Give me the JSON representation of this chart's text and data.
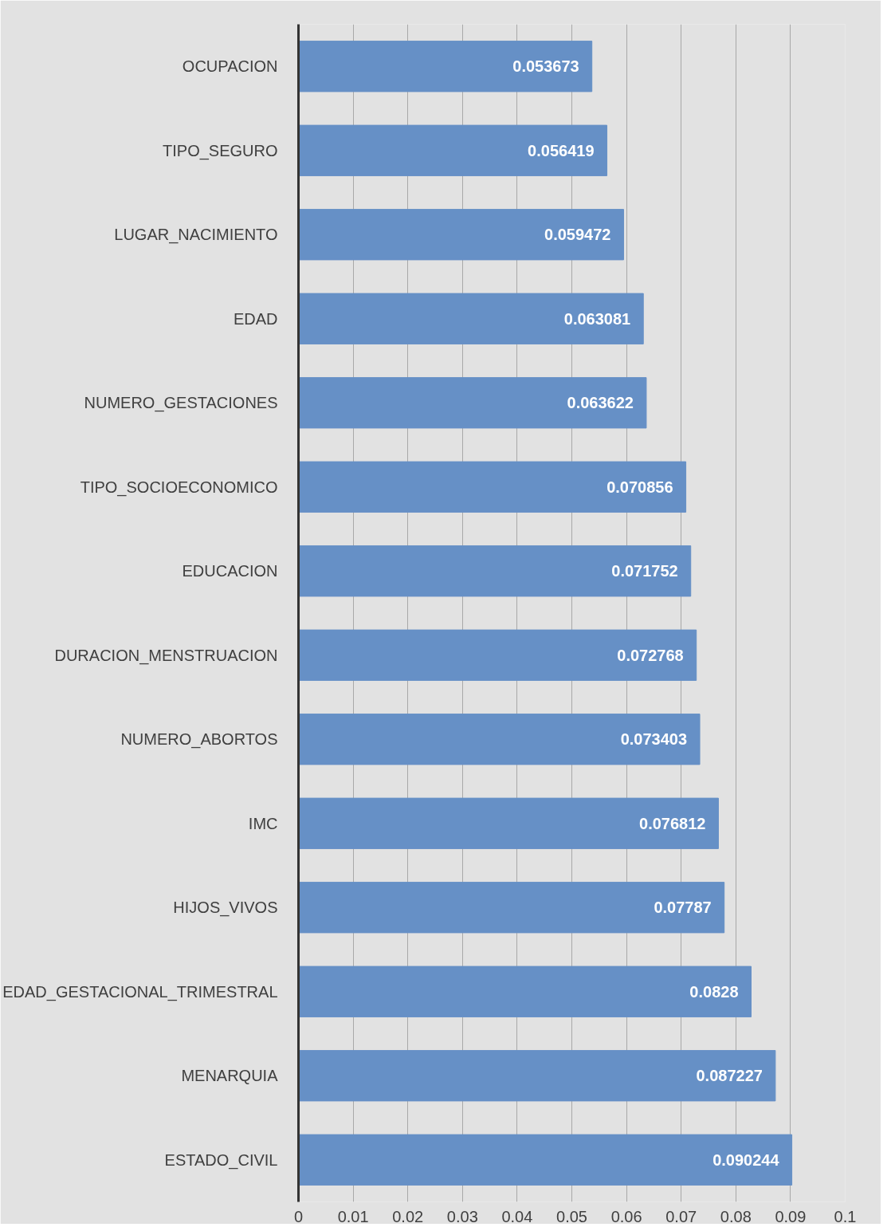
{
  "chart_data": {
    "type": "bar",
    "orientation": "horizontal",
    "categories": [
      "OCUPACION",
      "TIPO_SEGURO",
      "LUGAR_NACIMIENTO",
      "EDAD",
      "NUMERO_GESTACIONES",
      "TIPO_SOCIOECONOMICO",
      "EDUCACION",
      "DURACION_MENSTRUACION",
      "NUMERO_ABORTOS",
      "IMC",
      "HIJOS_VIVOS",
      "EDAD_GESTACIONAL_TRIMESTRAL",
      "MENARQUIA",
      "ESTADO_CIVIL"
    ],
    "values": [
      0.053673,
      0.056419,
      0.059472,
      0.063081,
      0.063622,
      0.070856,
      0.071752,
      0.072768,
      0.073403,
      0.076812,
      0.07787,
      0.0828,
      0.087227,
      0.090244
    ],
    "color": "#6690c6",
    "xlim": [
      0,
      0.1
    ],
    "xticks": [
      0,
      0.01,
      0.02,
      0.03,
      0.04,
      0.05,
      0.06,
      0.07,
      0.08,
      0.09,
      0.1
    ],
    "grid": "x",
    "data_labels": true
  }
}
